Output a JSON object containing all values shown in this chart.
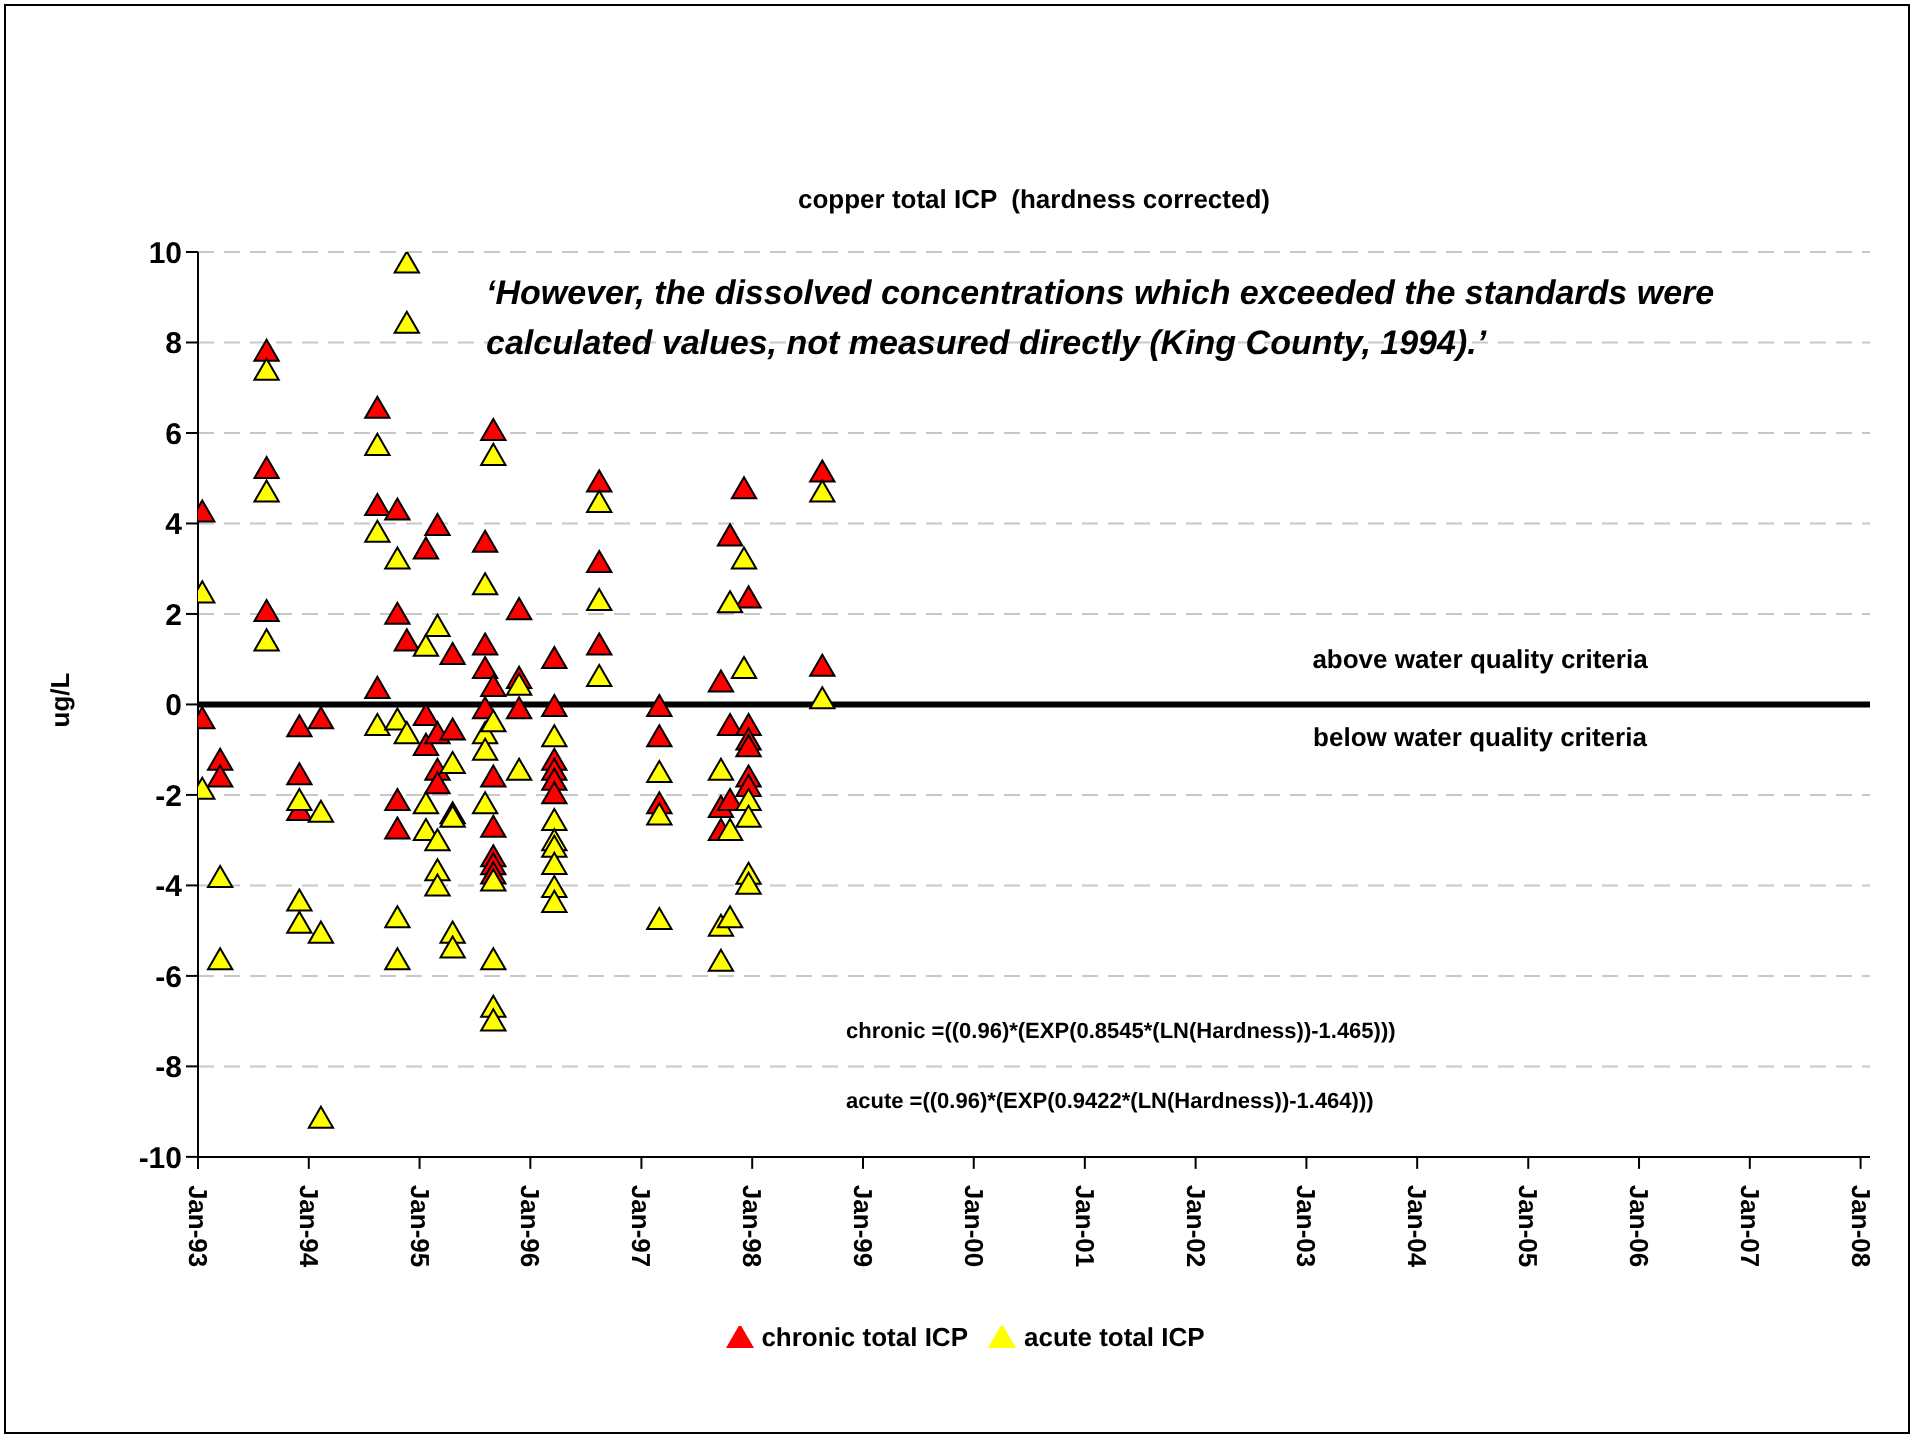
{
  "chart_data": {
    "type": "scatter",
    "title": "copper total ICP  (hardness corrected)",
    "ylabel": "ug/L",
    "annotations": [
      "‘However, the dissolved concentrations which exceeded the standards were calculated values, not measured directly (King County, 1994).’",
      "above water quality criteria",
      "below water quality criteria",
      "chronic =((0.96)*(EXP(0.8545*(LN(Hardness))-1.465)))",
      "acute =((0.96)*(EXP(0.9422*(LN(Hardness))-1.464)))"
    ],
    "series": [
      {
        "name": "chronic total ICP",
        "color": "#ff0000",
        "x": [
          "1993-01-15",
          "1993-01-15",
          "1993-03-15",
          "1993-03-15",
          "1993-08-15",
          "1993-08-15",
          "1993-08-15",
          "1993-12-01",
          "1993-12-01",
          "1993-12-01",
          "1994-02-10",
          "1994-08-15",
          "1994-08-15",
          "1994-08-15",
          "1994-10-20",
          "1994-10-20",
          "1994-10-20",
          "1994-10-20",
          "1994-11-20",
          "1995-01-22",
          "1995-01-22",
          "1995-01-22",
          "1995-03-01",
          "1995-03-01",
          "1995-03-01",
          "1995-03-01",
          "1995-04-20",
          "1995-04-20",
          "1995-04-20",
          "1995-08-05",
          "1995-08-05",
          "1995-08-05",
          "1995-08-05",
          "1995-09-01",
          "1995-09-01",
          "1995-09-01",
          "1995-09-01",
          "1995-09-01",
          "1995-09-01",
          "1995-09-01",
          "1995-11-25",
          "1995-11-25",
          "1995-11-25",
          "1996-03-20",
          "1996-03-20",
          "1996-03-20",
          "1996-03-20",
          "1996-03-20",
          "1996-03-20",
          "1996-08-15",
          "1996-08-15",
          "1996-08-15",
          "1997-03-01",
          "1997-03-01",
          "1997-03-01",
          "1997-09-20",
          "1997-09-20",
          "1997-09-20",
          "1997-10-20",
          "1997-10-20",
          "1997-10-20",
          "1997-12-05",
          "1997-12-20",
          "1997-12-20",
          "1997-12-20",
          "1997-12-20",
          "1997-12-20",
          "1997-12-20",
          "1998-08-20",
          "1998-08-20"
        ],
        "values": [
          4.2,
          -0.37,
          -1.29,
          -1.66,
          7.75,
          5.16,
          2.0,
          -0.55,
          -1.61,
          -2.4,
          -0.37,
          6.49,
          4.34,
          0.3,
          4.24,
          1.94,
          -2.18,
          -2.81,
          1.35,
          3.38,
          -0.3,
          -0.96,
          3.9,
          -0.7,
          -1.51,
          -1.81,
          1.05,
          -0.62,
          -2.47,
          3.53,
          1.26,
          0.74,
          -0.15,
          6.0,
          0.34,
          -1.66,
          -2.77,
          -3.42,
          -3.6,
          -3.8,
          2.04,
          0.52,
          -0.15,
          0.96,
          -0.1,
          -1.29,
          -1.51,
          -1.73,
          -2.03,
          4.86,
          3.08,
          1.26,
          -0.1,
          -0.77,
          -2.25,
          0.44,
          -2.33,
          -2.84,
          3.67,
          -0.52,
          -2.18,
          4.71,
          2.3,
          -0.52,
          -0.84,
          -0.99,
          -1.66,
          -1.87,
          5.08,
          0.79
        ]
      },
      {
        "name": "acute total ICP",
        "color": "#ffff00",
        "x": [
          "1993-01-15",
          "1993-01-15",
          "1993-03-15",
          "1993-03-15",
          "1993-08-15",
          "1993-08-15",
          "1993-08-15",
          "1993-12-01",
          "1993-12-01",
          "1993-12-01",
          "1994-02-10",
          "1994-02-10",
          "1994-02-10",
          "1994-08-15",
          "1994-08-15",
          "1994-08-15",
          "1994-10-20",
          "1994-10-20",
          "1994-10-20",
          "1994-10-20",
          "1994-11-20",
          "1994-11-20",
          "1994-11-20",
          "1995-01-22",
          "1995-01-22",
          "1995-01-22",
          "1995-03-01",
          "1995-03-01",
          "1995-03-01",
          "1995-03-01",
          "1995-04-20",
          "1995-04-20",
          "1995-04-20",
          "1995-04-20",
          "1995-08-05",
          "1995-08-05",
          "1995-08-05",
          "1995-08-05",
          "1995-09-01",
          "1995-09-01",
          "1995-09-01",
          "1995-09-01",
          "1995-09-01",
          "1995-09-01",
          "1995-11-25",
          "1995-11-25",
          "1996-03-20",
          "1996-03-20",
          "1996-03-20",
          "1996-03-20",
          "1996-03-20",
          "1996-03-20",
          "1996-03-20",
          "1996-08-15",
          "1996-08-15",
          "1996-08-15",
          "1997-03-01",
          "1997-03-01",
          "1997-03-01",
          "1997-09-20",
          "1997-09-20",
          "1997-09-20",
          "1997-10-20",
          "1997-10-20",
          "1997-10-20",
          "1997-12-05",
          "1997-12-05",
          "1997-12-20",
          "1997-12-20",
          "1997-12-20",
          "1997-12-20",
          "1998-08-20",
          "1998-08-20"
        ],
        "values": [
          2.41,
          -1.93,
          -3.88,
          -5.7,
          7.33,
          4.64,
          1.35,
          -2.18,
          -4.4,
          -4.89,
          -2.44,
          -5.11,
          -9.2,
          5.67,
          3.75,
          -0.52,
          3.16,
          -0.4,
          -4.77,
          -5.7,
          9.7,
          8.37,
          -0.7,
          1.23,
          -2.25,
          -2.84,
          1.67,
          -3.07,
          -3.73,
          -4.07,
          -1.36,
          -2.55,
          -5.11,
          -5.44,
          2.59,
          -0.7,
          -1.07,
          -2.25,
          5.45,
          -0.44,
          -3.96,
          -5.7,
          -6.75,
          -7.05,
          0.37,
          -1.51,
          -0.77,
          -2.62,
          -3.07,
          -3.21,
          -3.59,
          -4.1,
          -4.43,
          4.41,
          2.24,
          0.56,
          -1.56,
          -2.5,
          -4.81,
          -1.51,
          -4.96,
          -5.73,
          2.19,
          -2.84,
          -4.77,
          3.16,
          0.74,
          -2.18,
          -2.55,
          -3.81,
          -4.03,
          4.64,
          0.07
        ]
      }
    ],
    "xlim": [
      "1993-01-01",
      "2008-02-01"
    ],
    "xticks": [
      {
        "value": "1993-01-01",
        "label": "Jan-93"
      },
      {
        "value": "1994-01-01",
        "label": "Jan-94"
      },
      {
        "value": "1995-01-01",
        "label": "Jan-95"
      },
      {
        "value": "1996-01-01",
        "label": "Jan-96"
      },
      {
        "value": "1997-01-01",
        "label": "Jan-97"
      },
      {
        "value": "1998-01-01",
        "label": "Jan-98"
      },
      {
        "value": "1999-01-01",
        "label": "Jan-99"
      },
      {
        "value": "2000-01-01",
        "label": "Jan-00"
      },
      {
        "value": "2001-01-01",
        "label": "Jan-01"
      },
      {
        "value": "2002-01-01",
        "label": "Jan-02"
      },
      {
        "value": "2003-01-01",
        "label": "Jan-03"
      },
      {
        "value": "2004-01-01",
        "label": "Jan-04"
      },
      {
        "value": "2005-01-01",
        "label": "Jan-05"
      },
      {
        "value": "2006-01-01",
        "label": "Jan-06"
      },
      {
        "value": "2007-01-01",
        "label": "Jan-07"
      },
      {
        "value": "2008-01-01",
        "label": "Jan-08"
      }
    ],
    "ylim": [
      -10,
      10
    ],
    "yticks": [
      -10,
      -8,
      -6,
      -4,
      -2,
      0,
      2,
      4,
      6,
      8,
      10
    ],
    "ref_lines": [
      {
        "axis": "y",
        "value": 0,
        "color": "#000000"
      }
    ],
    "grid": "y",
    "legend": "bottom",
    "marker": "triangle"
  }
}
